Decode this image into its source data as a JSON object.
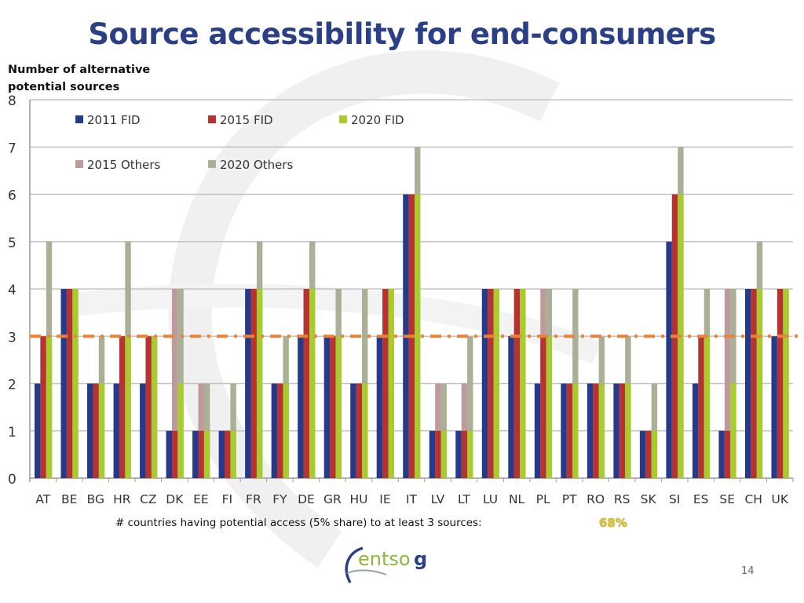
{
  "slide": {
    "title": "Source accessibility for end-consumers",
    "ylabel_line1": "Number of alternative",
    "ylabel_line2": "potential sources",
    "footnote": "# countries having potential access (5% share) to at least 3 sources:",
    "footnote_value": "68%",
    "footnote_value_overlay": "62%",
    "logo_text_light": "entso",
    "logo_text_bold": "g",
    "page_number": "14"
  },
  "colors": {
    "title": "#2b3f86",
    "s2011fid": "#253a8a",
    "s2015fid": "#b83232",
    "s2020fid": "#a8cc2e",
    "s2015others": "#bf9a9c",
    "s2020others": "#a9b095",
    "threshold": "#e8833a",
    "footnote_value": "#d6c23a"
  },
  "chart_data": {
    "type": "bar",
    "title": "Source accessibility for end-consumers",
    "xlabel": "",
    "ylabel": "Number of alternative potential sources",
    "ylim": [
      0,
      8
    ],
    "yticks": [
      0,
      1,
      2,
      3,
      4,
      5,
      6,
      7,
      8
    ],
    "grid": true,
    "legend_position": "top-left",
    "threshold_line": {
      "value": 3,
      "style": "dash-dot",
      "color": "#e8833a"
    },
    "categories": [
      "AT",
      "BE",
      "BG",
      "HR",
      "CZ",
      "DK",
      "EE",
      "FI",
      "FR",
      "FY",
      "DE",
      "GR",
      "HU",
      "IE",
      "IT",
      "LV",
      "LT",
      "LU",
      "NL",
      "PL",
      "PT",
      "RO",
      "RS",
      "SK",
      "SI",
      "ES",
      "SE",
      "CH",
      "UK"
    ],
    "series": [
      {
        "name": "2011 FID",
        "key": "s2011fid",
        "values": [
          2,
          4,
          2,
          2,
          2,
          1,
          1,
          1,
          4,
          2,
          3,
          3,
          2,
          3,
          6,
          1,
          1,
          4,
          3,
          2,
          2,
          2,
          2,
          1,
          5,
          2,
          1,
          4,
          3
        ]
      },
      {
        "name": "2015 FID",
        "key": "s2015fid",
        "values": [
          3,
          4,
          2,
          3,
          3,
          1,
          1,
          1,
          4,
          2,
          4,
          3,
          2,
          4,
          6,
          1,
          1,
          4,
          4,
          3,
          2,
          2,
          2,
          1,
          6,
          3,
          1,
          4,
          4
        ]
      },
      {
        "name": "2020 FID",
        "key": "s2020fid",
        "values": [
          3,
          4,
          2,
          3,
          3,
          2,
          1,
          1,
          4,
          2,
          4,
          3,
          2,
          4,
          6,
          1,
          1,
          4,
          4,
          3,
          2,
          2,
          2,
          1,
          6,
          3,
          2,
          4,
          4
        ]
      },
      {
        "name": "2015 Others",
        "key": "s2015others",
        "values": [
          3,
          4,
          2,
          3,
          3,
          4,
          2,
          1,
          4,
          2,
          4,
          3,
          2,
          4,
          6,
          2,
          2,
          4,
          4,
          4,
          2,
          2,
          2,
          1,
          6,
          3,
          4,
          4,
          4
        ]
      },
      {
        "name": "2020 Others",
        "key": "s2020others",
        "values": [
          5,
          4,
          3,
          5,
          3,
          4,
          2,
          2,
          5,
          3,
          5,
          4,
          4,
          4,
          7,
          2,
          3,
          4,
          4,
          4,
          4,
          3,
          3,
          2,
          7,
          4,
          4,
          5,
          4
        ]
      }
    ],
    "legend": [
      {
        "label": "2011 FID",
        "key": "s2011fid"
      },
      {
        "label": "2015 FID",
        "key": "s2015fid"
      },
      {
        "label": "2020 FID",
        "key": "s2020fid"
      },
      {
        "label": "2015 Others",
        "key": "s2015others"
      },
      {
        "label": "2020 Others",
        "key": "s2020others"
      }
    ]
  }
}
